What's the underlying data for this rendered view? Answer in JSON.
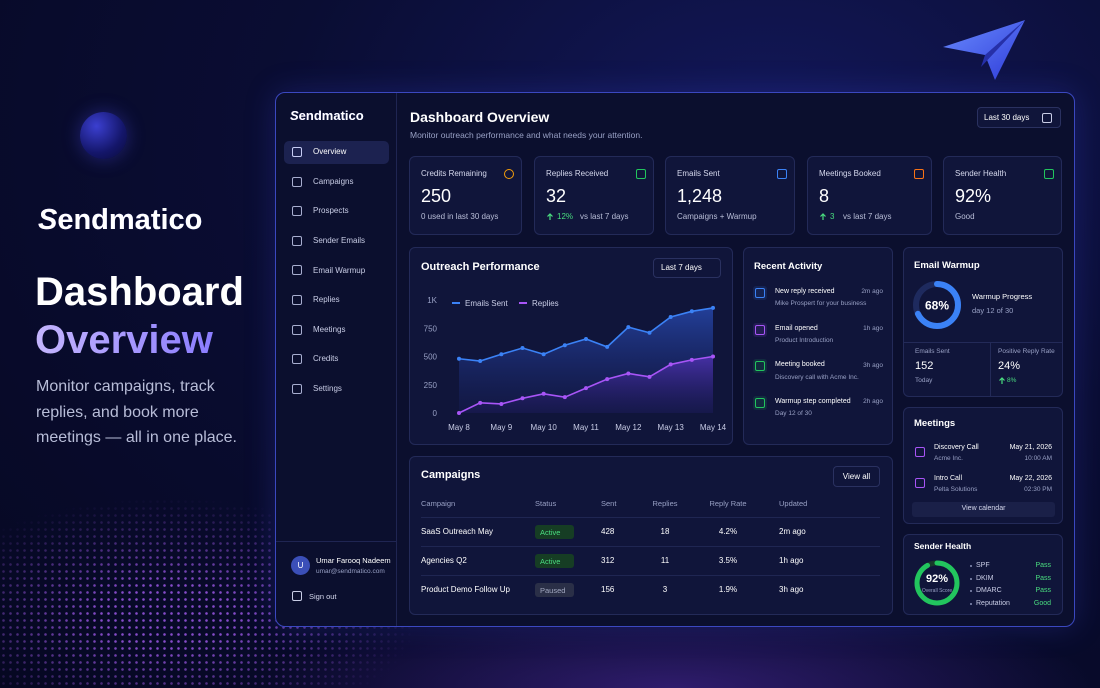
{
  "hero": {
    "brand": "Sendmatico",
    "title_line1": "Dashboard",
    "title_line2": "Overview",
    "tagline": "Monitor campaigns, track replies, and book more meetings — all in one place."
  },
  "sidebar": {
    "brand": "Sendmatico",
    "nav": [
      "Overview",
      "Campaigns",
      "Prospects",
      "Sender Emails",
      "Email Warmup",
      "Replies",
      "Meetings",
      "Credits",
      "Settings"
    ],
    "user": {
      "initial": "U",
      "name": "Umar Farooq Nadeem",
      "email": "umar@sendmatico.com"
    },
    "sign_out": "Sign out"
  },
  "header": {
    "title": "Dashboard Overview",
    "subtitle": "Monitor outreach performance and what needs your attention.",
    "range": "Last 30 days"
  },
  "stats": [
    {
      "label": "Credits Remaining",
      "value": "250",
      "note": "0 used in last 30 days"
    },
    {
      "label": "Replies Received",
      "value": "32",
      "change": "12%",
      "note": "vs last 7 days"
    },
    {
      "label": "Emails Sent",
      "value": "1,248",
      "note": "Campaigns + Warmup"
    },
    {
      "label": "Meetings Booked",
      "value": "8",
      "change": "3",
      "note": "vs last 7 days"
    },
    {
      "label": "Sender Health",
      "value": "92%",
      "note": "Good"
    }
  ],
  "chart_data": {
    "type": "line",
    "title": "Outreach Performance",
    "range": "Last 7 days",
    "categories": [
      "May 8",
      null,
      "May 9",
      null,
      "May 10",
      null,
      "May 11",
      null,
      "May 12",
      null,
      "May 13",
      null,
      "May 14"
    ],
    "series": [
      {
        "name": "Emails Sent",
        "color": "#3b82f6",
        "values": [
          480,
          460,
          520,
          575,
          520,
          600,
          655,
          585,
          760,
          710,
          850,
          900,
          930
        ]
      },
      {
        "name": "Replies",
        "color": "#a855f7",
        "values": [
          0,
          90,
          80,
          130,
          170,
          140,
          220,
          300,
          350,
          320,
          430,
          470,
          500
        ]
      }
    ],
    "ylim": [
      0,
      1000
    ],
    "yticks": [
      0,
      250,
      500,
      750,
      {
        "value": 1000,
        "label": "1K"
      }
    ],
    "grid": false
  },
  "activity": {
    "title": "Recent Activity",
    "items": [
      {
        "title": "New reply received",
        "time": "2m ago",
        "detail": "Mike Prospert for your business"
      },
      {
        "title": "Email opened",
        "time": "1h ago",
        "detail": "Product Introduction"
      },
      {
        "title": "Meeting booked",
        "time": "3h ago",
        "detail": "Discovery call with Acme Inc."
      },
      {
        "title": "Warmup step completed",
        "time": "2h ago",
        "detail": "Day 12 of 30"
      }
    ]
  },
  "warmup": {
    "title": "Email Warmup",
    "progress": 68,
    "progress_label": "68%",
    "label": "Warmup Progress",
    "detail": "day 12 of 30",
    "stats": [
      {
        "label": "Emails Sent",
        "value": "152",
        "note": "Today"
      },
      {
        "label": "Positive Reply Rate",
        "value": "24%",
        "change": "8%"
      }
    ]
  },
  "meetings": {
    "title": "Meetings",
    "items": [
      {
        "title": "Discovery Call",
        "company": "Acme Inc.",
        "date": "May 21, 2026",
        "time": "10:00 AM"
      },
      {
        "title": "Intro Call",
        "company": "Pelta Solutions",
        "date": "May 22, 2026",
        "time": "02:30 PM"
      }
    ],
    "button": "View calendar"
  },
  "health": {
    "title": "Sender Health",
    "score": 92,
    "score_label": "92%",
    "score_caption": "Overall Score",
    "checks": [
      {
        "name": "SPF",
        "status": "Pass"
      },
      {
        "name": "DKIM",
        "status": "Pass"
      },
      {
        "name": "DMARC",
        "status": "Pass"
      },
      {
        "name": "Reputation",
        "status": "Good"
      }
    ]
  },
  "campaigns": {
    "title": "Campaigns",
    "view_all": "View all",
    "columns": [
      "Campaign",
      "Status",
      "Sent",
      "Replies",
      "Reply Rate",
      "Updated"
    ],
    "rows": [
      [
        "SaaS Outreach May",
        "Active",
        "428",
        "18",
        "4.2%",
        "2m ago"
      ],
      [
        "Agencies Q2",
        "Active",
        "312",
        "11",
        "3.5%",
        "1h ago"
      ],
      [
        "Product Demo Follow Up",
        "Paused",
        "156",
        "3",
        "1.9%",
        "3h ago"
      ]
    ]
  }
}
